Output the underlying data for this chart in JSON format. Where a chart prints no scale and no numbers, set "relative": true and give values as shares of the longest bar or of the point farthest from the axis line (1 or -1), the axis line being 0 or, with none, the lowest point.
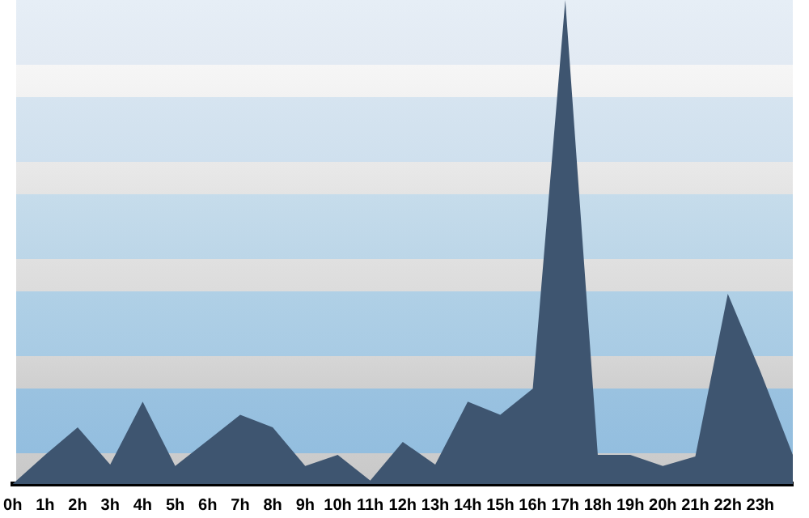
{
  "chart_data": {
    "type": "area",
    "relative": true,
    "grid": false,
    "legend": false,
    "categories": [
      "0h",
      "1h",
      "2h",
      "3h",
      "4h",
      "5h",
      "6h",
      "7h",
      "8h",
      "9h",
      "10h",
      "11h",
      "12h",
      "13h",
      "14h",
      "15h",
      "16h",
      "17h",
      "18h",
      "19h",
      "20h",
      "21h",
      "22h",
      "23h",
      null
    ],
    "series": [
      {
        "color": "#3e5570",
        "values": [
          0,
          0.06,
          0.117,
          0.04,
          0.17,
          0.037,
          0.09,
          0.143,
          0.117,
          0.037,
          0.06,
          0.007,
          0.087,
          0.04,
          0.17,
          0.143,
          0.197,
          1,
          0.06,
          0.06,
          0.037,
          0.057,
          0.393,
          0.233,
          0.06
        ]
      }
    ]
  }
}
